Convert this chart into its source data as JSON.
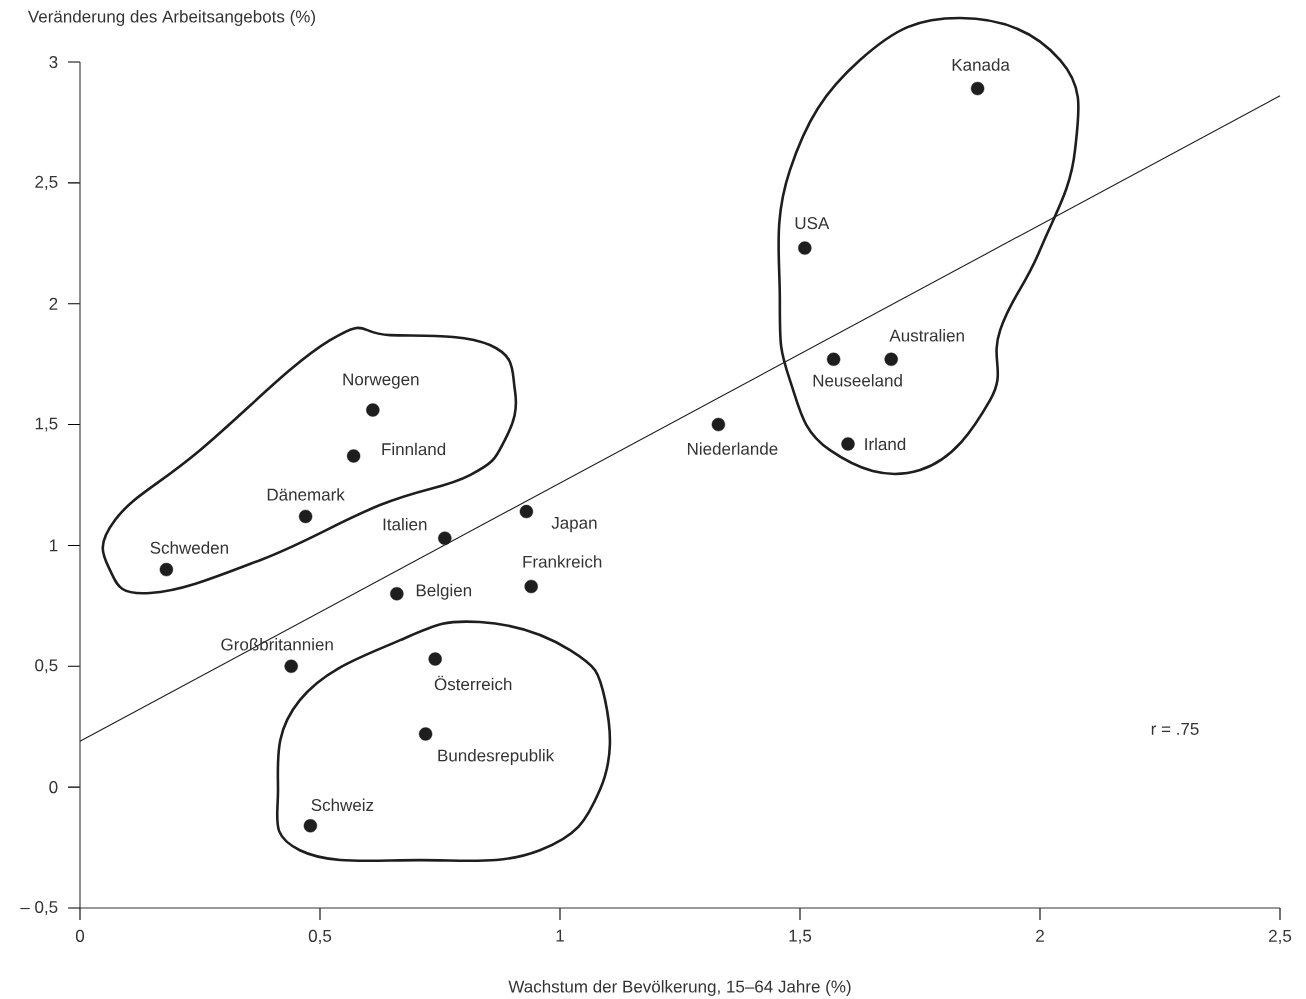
{
  "chart_data": {
    "type": "scatter",
    "xlabel": "Wachstum der Bevölkerung, 15–64 Jahre (%)",
    "ylabel": "Veränderung des Arbeitsangebots (%)",
    "xlim": [
      0,
      2.5
    ],
    "ylim": [
      -0.5,
      3
    ],
    "xticks": [
      {
        "value": 0,
        "label": "0"
      },
      {
        "value": 0.5,
        "label": "0,5"
      },
      {
        "value": 1,
        "label": "1"
      },
      {
        "value": 1.5,
        "label": "1,5"
      },
      {
        "value": 2,
        "label": "2"
      },
      {
        "value": 2.5,
        "label": "2,5"
      }
    ],
    "yticks": [
      {
        "value": -0.5,
        "label": "– 0,5"
      },
      {
        "value": 0,
        "label": "0"
      },
      {
        "value": 0.5,
        "label": "0,5"
      },
      {
        "value": 1,
        "label": "1"
      },
      {
        "value": 1.5,
        "label": "1,5"
      },
      {
        "value": 2,
        "label": "2"
      },
      {
        "value": 2.5,
        "label": "2,5"
      },
      {
        "value": 3,
        "label": "3"
      }
    ],
    "series": [
      {
        "color": "#1e1e1e",
        "marker": "circle",
        "x": [
          0.18,
          0.47,
          0.57,
          0.61,
          0.76,
          0.93,
          0.94,
          0.66,
          0.44,
          0.74,
          0.72,
          0.48,
          1.33,
          1.51,
          1.87,
          1.57,
          1.69,
          1.6
        ],
        "values": [
          0.9,
          1.12,
          1.37,
          1.56,
          1.03,
          1.14,
          0.83,
          0.8,
          0.5,
          0.53,
          0.22,
          -0.16,
          1.5,
          2.23,
          2.89,
          1.77,
          1.77,
          1.42
        ]
      },
      {
        "type": "line",
        "color": "#1e1e1e",
        "marker": "none",
        "line_style": "solid",
        "x": [
          0,
          2.5
        ],
        "values": [
          0.19,
          2.86
        ]
      }
    ],
    "annotations": [
      {
        "text": "Schweden",
        "x": 0.18,
        "y": 0.9
      },
      {
        "text": "Dänemark",
        "x": 0.47,
        "y": 1.12
      },
      {
        "text": "Finnland",
        "x": 0.57,
        "y": 1.37
      },
      {
        "text": "Norwegen",
        "x": 0.61,
        "y": 1.56
      },
      {
        "text": "Italien",
        "x": 0.76,
        "y": 1.03
      },
      {
        "text": "Japan",
        "x": 0.93,
        "y": 1.14
      },
      {
        "text": "Frankreich",
        "x": 0.94,
        "y": 0.83
      },
      {
        "text": "Belgien",
        "x": 0.66,
        "y": 0.8
      },
      {
        "text": "Großbritannien",
        "x": 0.44,
        "y": 0.5
      },
      {
        "text": "Österreich",
        "x": 0.74,
        "y": 0.53
      },
      {
        "text": "Bundesrepublik",
        "x": 0.72,
        "y": 0.22
      },
      {
        "text": "Schweiz",
        "x": 0.48,
        "y": -0.16
      },
      {
        "text": "Niederlande",
        "x": 1.33,
        "y": 1.5
      },
      {
        "text": "USA",
        "x": 1.51,
        "y": 2.23
      },
      {
        "text": "Kanada",
        "x": 1.87,
        "y": 2.89
      },
      {
        "text": "Neuseeland",
        "x": 1.57,
        "y": 1.77
      },
      {
        "text": "Australien",
        "x": 1.69,
        "y": 1.77
      },
      {
        "text": "Irland",
        "x": 1.6,
        "y": 1.42
      },
      "r = .75"
    ]
  }
}
